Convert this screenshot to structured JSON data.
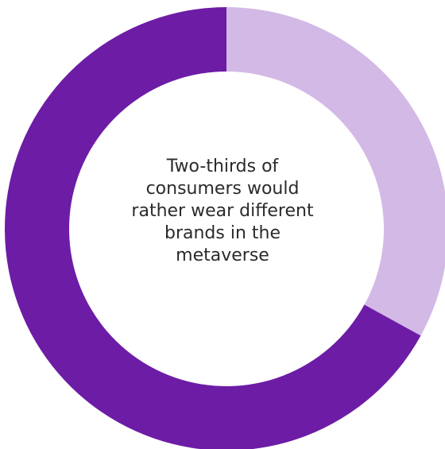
{
  "chart_data": {
    "type": "pie",
    "style": "donut",
    "center_text_lines": [
      "Two-thirds of",
      "consumers would",
      "rather wear different",
      "brands in the",
      "metaverse"
    ],
    "series": [
      {
        "value": 0.33,
        "color": "#d3b9e6"
      },
      {
        "value": 0.67,
        "color": "#6d1ca6"
      }
    ],
    "start": "top",
    "direction": "clockwise",
    "legend": "none"
  }
}
